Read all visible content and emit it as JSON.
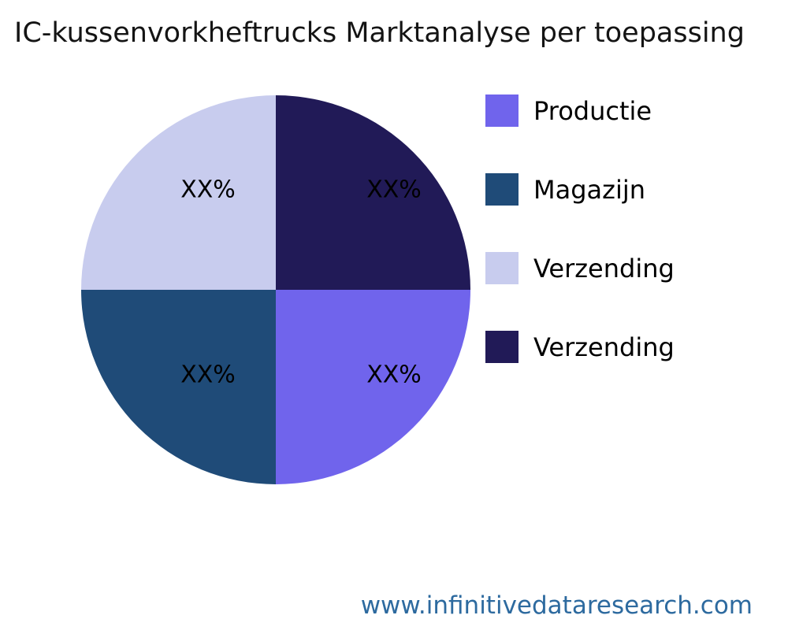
{
  "title": {
    "text": "IC-kussenvorkheftrucks Marktanalyse per toepassing",
    "color": "#141414"
  },
  "footer": {
    "text": "www.infinitivedataresearch.com",
    "color": "#2d6a9f"
  },
  "chart_data": {
    "type": "pie",
    "title": "IC-kussenvorkheftrucks Marktanalyse per toepassing",
    "legend_position": "right",
    "start_angle": "3-o'clock",
    "direction": "clockwise",
    "slices": [
      {
        "label": "Productie",
        "value": 25,
        "value_label": "XX%",
        "color": "#7064ec",
        "position": "bottom-right"
      },
      {
        "label": "Magazijn",
        "value": 25,
        "value_label": "XX%",
        "color": "#1f4b78",
        "position": "bottom-left"
      },
      {
        "label": "Verzending",
        "value": 25,
        "value_label": "XX%",
        "color": "#c8ccee",
        "position": "top-left"
      },
      {
        "label": "Verzending",
        "value": 25,
        "value_label": "XX%",
        "color": "#211a57",
        "position": "top-right"
      }
    ]
  }
}
